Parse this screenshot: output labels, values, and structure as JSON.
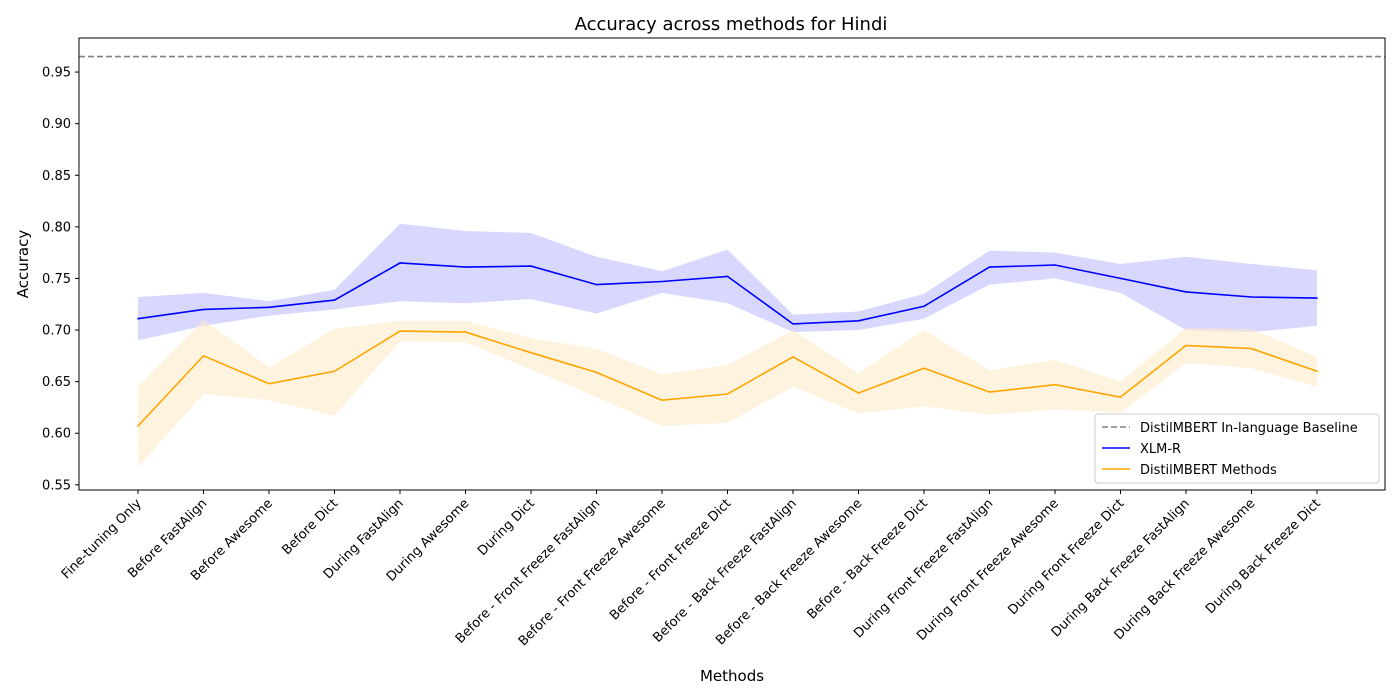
{
  "chart_data": {
    "type": "line",
    "title": "Accuracy across methods for Hindi",
    "xlabel": "Methods",
    "ylabel": "Accuracy",
    "ylim": [
      0.545,
      0.983
    ],
    "yticks": [
      "0.55",
      "0.60",
      "0.65",
      "0.70",
      "0.75",
      "0.80",
      "0.85",
      "0.90",
      "0.95"
    ],
    "categories": [
      "Fine-tuning Only",
      "Before FastAlign",
      "Before Awesome",
      "Before Dict",
      "During FastAlign",
      "During Awesome",
      "During Dict",
      "Before - Front Freeze FastAlign",
      "Before - Front Freeze Awesome",
      "Before - Front Freeze Dict",
      "Before - Back Freeze FastAlign",
      "Before - Back Freeze Awesome",
      "Before - Back Freeze Dict",
      "During Front Freeze FastAlign",
      "During Front Freeze Awesome",
      "During Front Freeze Dict",
      "During Back Freeze FastAlign",
      "During Back Freeze Awesome",
      "During Back Freeze Dict"
    ],
    "baseline": {
      "name": "DistilMBERT In-language Baseline",
      "value": 0.965,
      "color": "#808080"
    },
    "series": [
      {
        "name": "XLM-R",
        "color": "#0000ff",
        "band_color": "#b8b8ff",
        "values": [
          0.711,
          0.72,
          0.722,
          0.729,
          0.765,
          0.761,
          0.762,
          0.744,
          0.747,
          0.752,
          0.706,
          0.709,
          0.723,
          0.761,
          0.763,
          0.75,
          0.737,
          0.732,
          0.731
        ],
        "lower": [
          0.69,
          0.704,
          0.714,
          0.72,
          0.728,
          0.726,
          0.73,
          0.716,
          0.736,
          0.726,
          0.698,
          0.7,
          0.711,
          0.744,
          0.75,
          0.736,
          0.7,
          0.698,
          0.704
        ],
        "upper": [
          0.732,
          0.736,
          0.728,
          0.739,
          0.803,
          0.796,
          0.794,
          0.771,
          0.757,
          0.778,
          0.715,
          0.718,
          0.735,
          0.777,
          0.775,
          0.764,
          0.771,
          0.764,
          0.758
        ]
      },
      {
        "name": "DistilMBERT Methods",
        "color": "#ffa500",
        "band_color": "#fde9c4",
        "values": [
          0.607,
          0.675,
          0.648,
          0.66,
          0.699,
          0.698,
          0.678,
          0.659,
          0.632,
          0.638,
          0.674,
          0.639,
          0.663,
          0.64,
          0.647,
          0.635,
          0.685,
          0.682,
          0.66
        ],
        "lower": [
          0.567,
          0.638,
          0.632,
          0.617,
          0.689,
          0.688,
          0.662,
          0.635,
          0.607,
          0.61,
          0.645,
          0.619,
          0.626,
          0.618,
          0.623,
          0.62,
          0.668,
          0.663,
          0.645
        ],
        "upper": [
          0.645,
          0.71,
          0.664,
          0.701,
          0.709,
          0.709,
          0.692,
          0.682,
          0.657,
          0.666,
          0.7,
          0.658,
          0.7,
          0.661,
          0.671,
          0.65,
          0.702,
          0.701,
          0.674
        ]
      }
    ],
    "legend_position": "lower right",
    "grid": false
  }
}
